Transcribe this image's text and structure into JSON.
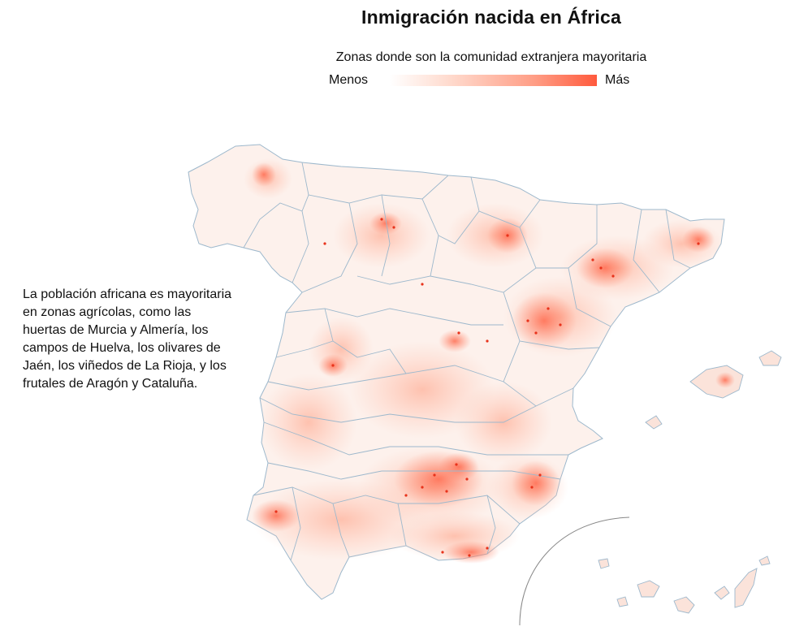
{
  "title": "Inmigración nacida en África",
  "legend": {
    "subtitle": "Zonas donde son la comunidad extranjera mayoritaria",
    "low_label": "Menos",
    "high_label": "Más",
    "colors": [
      "#ffffff",
      "#ffd9cc",
      "#ff9d85",
      "#ff5a3d"
    ]
  },
  "annotation": "La población africana es mayoritaria en zonas agrícolas, como las huertas de Murcia y Almería, los campos de Huelva, los olivares de Jaén, los viñedos de La Rioja, y los frutales de Aragón y Cataluña.",
  "map": {
    "base_fill": "#fdf1ec",
    "border_color": "#9db8cc",
    "hotspot_color": "#e8321b"
  }
}
